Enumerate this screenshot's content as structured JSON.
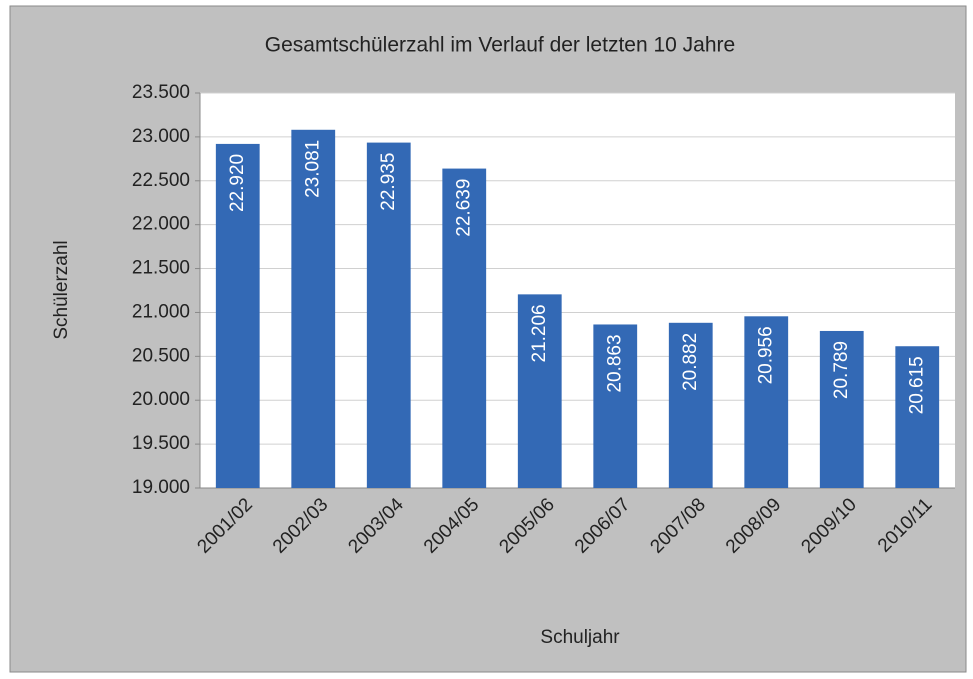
{
  "chart_data": {
    "type": "bar",
    "title": "Gesamtschülerzahl im Verlauf der letzten 10 Jahre",
    "x_label": "Schuljahr",
    "y_label": "Schülerzahl",
    "categories": [
      "2001/02",
      "2002/03",
      "2003/04",
      "2004/05",
      "2005/06",
      "2006/07",
      "2007/08",
      "2008/09",
      "2009/10",
      "2010/11"
    ],
    "values": [
      22920,
      23081,
      22935,
      22639,
      21206,
      20863,
      20882,
      20956,
      20789,
      20615
    ],
    "value_labels": [
      "22.920",
      "23.081",
      "22.935",
      "22.639",
      "21.206",
      "20.863",
      "20.882",
      "20.956",
      "20.789",
      "20.615"
    ],
    "color": "#3369b5",
    "ylim": [
      19000,
      23500
    ],
    "yticks": [
      {
        "value": 19000,
        "label": "19.000"
      },
      {
        "value": 19500,
        "label": "19.500"
      },
      {
        "value": 20000,
        "label": "20.000"
      },
      {
        "value": 20500,
        "label": "20.500"
      },
      {
        "value": 21000,
        "label": "21.000"
      },
      {
        "value": 21500,
        "label": "21.500"
      },
      {
        "value": 22000,
        "label": "22.000"
      },
      {
        "value": 22500,
        "label": "22.500"
      },
      {
        "value": 23000,
        "label": "23.000"
      },
      {
        "value": 23500,
        "label": "23.500"
      }
    ],
    "grid": true
  }
}
